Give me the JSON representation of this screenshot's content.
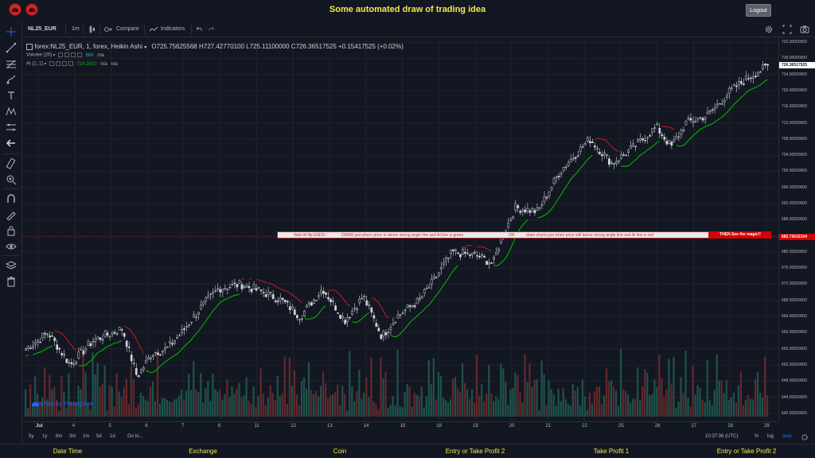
{
  "app": {
    "title": "Some automated draw of trading idea",
    "logout_label": "Logout"
  },
  "toolbar": {
    "symbol": "NL25_EUR",
    "interval": "1m",
    "compare_label": "Compare",
    "indicators_label": "Indicators"
  },
  "legend": {
    "main_title": "forex:NL25_EUR, 1, forex, Heikin Ashi",
    "open": "O725.75625568",
    "high": "H727.42770100",
    "low": "L725.11100000",
    "close": "C726.36517525",
    "change": "+0.15417525 (+0.02%)",
    "volume_label": "Volume (20)",
    "volume_value": "866",
    "volume_na": "n/a",
    "ai_label": "AI (1, 1)",
    "ai_value": "724.2610",
    "ai_na1": "n/a",
    "ai_na2": "n/a"
  },
  "annotation": {
    "text1": "Wait till flip ENDS  !",
    "text2": "DRAW just when:  price is above strong angle line and AI line is green",
    "text3": "OR",
    "text4": "draw shorts just when price still below strong angle line and AI line is red",
    "red_text": "THEN See the magic!!"
  },
  "price_axis": {
    "labels": [
      "732.00000000",
      "728.00000000",
      "724.00000000",
      "720.00000000",
      "716.00000000",
      "712.00000000",
      "708.00000000",
      "704.00000000",
      "700.00000000",
      "696.00000000",
      "692.00000000",
      "688.00000000",
      "684.00000000",
      "680.00000000",
      "676.00000000",
      "672.00000000",
      "668.00000000",
      "664.00000000",
      "660.00000000",
      "656.00000000",
      "652.00000000",
      "648.00000000",
      "644.00000000",
      "640.00000000"
    ],
    "current_price": "726.36517525",
    "marker_price": "683.72632104",
    "current_color": "#ffffff",
    "marker_color": "#d50000"
  },
  "time_axis": {
    "labels": [
      "Jul",
      "4",
      "5",
      "6",
      "7",
      "8",
      "11",
      "12",
      "13",
      "14",
      "15",
      "18",
      "19",
      "20",
      "21",
      "22",
      "25",
      "26",
      "27",
      "28",
      "29"
    ]
  },
  "bottom_bar": {
    "ranges": [
      "5y",
      "1y",
      "6m",
      "3m",
      "1m",
      "5d",
      "1d"
    ],
    "goto_label": "Go to...",
    "clock": "10:37:36 (UTC)",
    "pct": "%",
    "log": "log",
    "auto": "auto"
  },
  "watermark": "Chart by TradingView",
  "columns": [
    "Date Time",
    "Exchange",
    "Coin",
    "Entry or Take Profit 2",
    "Take Profit 1",
    "Entry or Take Profit 2"
  ],
  "colors": {
    "accent_yellow": "#f5e94a",
    "up_green": "#26a69a",
    "down_red": "#ef5350",
    "ai_green": "#00b300",
    "ai_red": "#b71c1c"
  },
  "chart_data": {
    "type": "candlestick",
    "ylim": [
      638,
      733
    ],
    "price_anchors": [
      [
        0,
        656
      ],
      [
        0.03,
        660
      ],
      [
        0.06,
        652
      ],
      [
        0.09,
        658
      ],
      [
        0.13,
        661
      ],
      [
        0.15,
        649
      ],
      [
        0.17,
        655
      ],
      [
        0.19,
        656
      ],
      [
        0.21,
        660
      ],
      [
        0.235,
        666
      ],
      [
        0.26,
        671
      ],
      [
        0.29,
        672
      ],
      [
        0.32,
        670
      ],
      [
        0.345,
        668
      ],
      [
        0.37,
        664
      ],
      [
        0.4,
        671
      ],
      [
        0.43,
        663
      ],
      [
        0.455,
        669
      ],
      [
        0.48,
        659
      ],
      [
        0.5,
        664
      ],
      [
        0.53,
        668
      ],
      [
        0.55,
        673
      ],
      [
        0.575,
        680
      ],
      [
        0.61,
        679
      ],
      [
        0.63,
        677
      ],
      [
        0.64,
        683
      ],
      [
        0.66,
        691
      ],
      [
        0.69,
        690
      ],
      [
        0.72,
        700
      ],
      [
        0.76,
        708
      ],
      [
        0.79,
        702
      ],
      [
        0.82,
        706
      ],
      [
        0.85,
        711
      ],
      [
        0.87,
        706
      ],
      [
        0.89,
        712
      ],
      [
        0.92,
        714
      ],
      [
        0.95,
        720
      ],
      [
        0.98,
        724
      ],
      [
        1.0,
        726
      ]
    ],
    "volume_levels": [
      0.35,
      0.25,
      0.45,
      0.3,
      0.55,
      0.4,
      0.3,
      0.25,
      0.6,
      0.35,
      0.5,
      0.3,
      0.4,
      0.45,
      0.2,
      0.55,
      0.35,
      0.3,
      0.5,
      0.4
    ]
  }
}
